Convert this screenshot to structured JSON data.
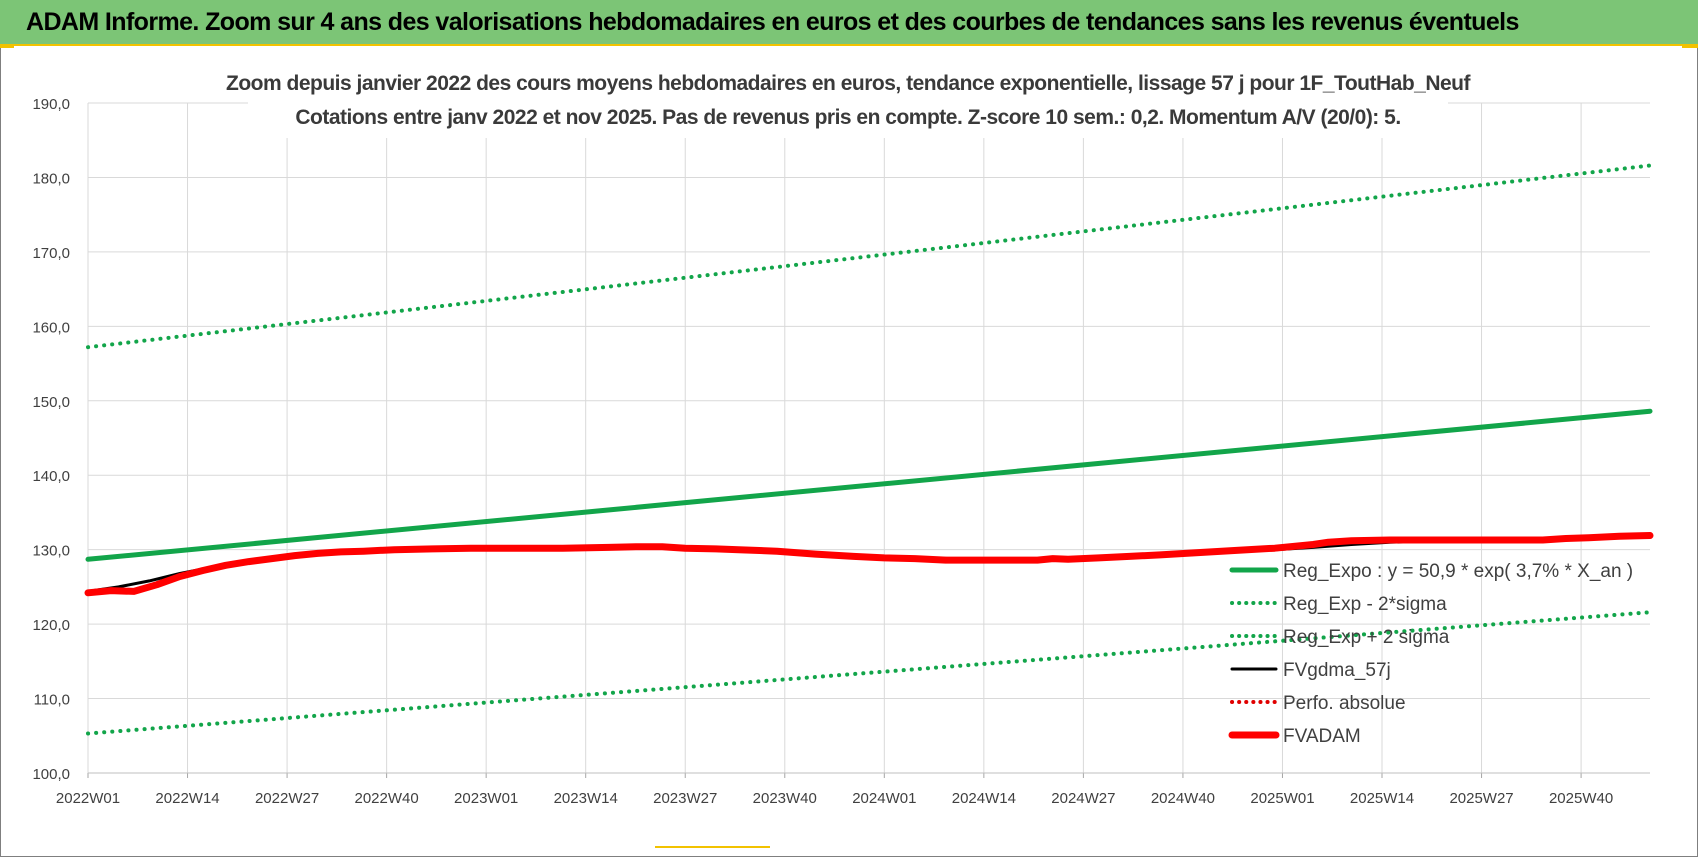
{
  "banner": {
    "title": "ADAM Informe. Zoom sur 4 ans des valorisations hebdomadaires en euros et des courbes de tendances sans les revenus éventuels"
  },
  "colors": {
    "banner_bg": "#7cc576",
    "accent_yellow": "#f2c200",
    "trend_green": "#12a54a",
    "band_green": "#12a54a",
    "fvgdma_black": "#000000",
    "perfo_red": "#e00000",
    "fvadam_red": "#ff0000",
    "grid": "#d9d9d9",
    "axis_text": "#404040"
  },
  "chart_data": {
    "type": "line",
    "title": "Zoom depuis janvier 2022 des cours moyens hebdomadaires en euros, tendance exponentielle, lissage 57 j pour 1F_ToutHab_Neuf",
    "subtitle": "Cotations entre janv 2022 et nov 2025. Pas de revenus pris en compte. Z-score 10 sem.: 0,2. Momentum A/V (20/0): 5.",
    "x_tick_labels": [
      "2022W01",
      "2022W14",
      "2022W27",
      "2022W40",
      "2023W01",
      "2023W14",
      "2023W27",
      "2023W40",
      "2024W01",
      "2024W14",
      "2024W27",
      "2024W40",
      "2025W01",
      "2025W14",
      "2025W27",
      "2025W40"
    ],
    "x_range_weeks": [
      0,
      204
    ],
    "ylim": [
      100,
      190
    ],
    "y_tick_labels": [
      "100,0",
      "110,0",
      "120,0",
      "130,0",
      "140,0",
      "150,0",
      "160,0",
      "170,0",
      "180,0",
      "190,0"
    ],
    "grid": true,
    "legend_position": "bottom-right",
    "series": [
      {
        "name": "Reg_Expo : y = 50,9 * exp( 3,7% *  X_an )",
        "style": "solid-thick",
        "color": "#12a54a",
        "x": [
          0,
          204
        ],
        "y": [
          128.7,
          148.6
        ]
      },
      {
        "name": "Reg_Exp - 2*sigma",
        "style": "dotted",
        "color": "#12a54a",
        "x": [
          0,
          204
        ],
        "y": [
          105.3,
          121.6
        ]
      },
      {
        "name": "Reg_Exp + 2 sigma",
        "style": "dotted",
        "color": "#12a54a",
        "x": [
          0,
          204
        ],
        "y": [
          157.2,
          181.6
        ]
      },
      {
        "name": "FVgdma_57j",
        "style": "solid",
        "color": "#000000",
        "x": [
          0,
          4,
          8,
          12,
          16,
          20,
          25,
          30,
          35,
          40,
          45,
          50,
          56,
          62,
          70,
          78,
          85,
          90,
          95,
          100,
          105,
          110,
          115,
          120,
          125,
          130,
          135,
          140,
          145,
          150,
          155,
          160,
          165,
          170,
          175,
          180,
          185,
          190,
          195,
          200,
          204
        ],
        "y": [
          124.4,
          125.0,
          125.8,
          126.8,
          127.6,
          128.1,
          128.8,
          129.3,
          129.7,
          129.9,
          130.1,
          130.2,
          130.2,
          130.2,
          130.3,
          130.4,
          130.1,
          129.8,
          129.4,
          129.2,
          129.0,
          128.9,
          128.7,
          128.7,
          128.7,
          128.8,
          129.0,
          129.2,
          129.5,
          129.7,
          130.0,
          130.3,
          130.7,
          131.0,
          131.1,
          131.2,
          131.3,
          131.4,
          131.6,
          131.8,
          131.9
        ]
      },
      {
        "name": "Perfo. absolue",
        "style": "dotted",
        "color": "#e00000",
        "x": [],
        "y": []
      },
      {
        "name": "FVADAM",
        "style": "solid-thick",
        "color": "#ff0000",
        "x": [
          0,
          3,
          6,
          9,
          12,
          15,
          18,
          21,
          24,
          27,
          30,
          33,
          36,
          40,
          45,
          50,
          56,
          62,
          68,
          72,
          75,
          78,
          82,
          85,
          90,
          95,
          100,
          104,
          108,
          112,
          116,
          120,
          124,
          126,
          128,
          132,
          136,
          140,
          145,
          150,
          155,
          160,
          162,
          165,
          170,
          175,
          180,
          185,
          190,
          193,
          196,
          200,
          204
        ],
        "y": [
          124.2,
          124.5,
          124.4,
          125.3,
          126.4,
          127.2,
          127.9,
          128.4,
          128.8,
          129.2,
          129.5,
          129.7,
          129.8,
          130.0,
          130.1,
          130.2,
          130.2,
          130.2,
          130.3,
          130.4,
          130.4,
          130.2,
          130.1,
          130.0,
          129.8,
          129.4,
          129.1,
          128.9,
          128.8,
          128.6,
          128.6,
          128.6,
          128.6,
          128.8,
          128.7,
          128.9,
          129.1,
          129.3,
          129.6,
          129.9,
          130.2,
          130.7,
          131.0,
          131.2,
          131.3,
          131.3,
          131.3,
          131.3,
          131.3,
          131.5,
          131.6,
          131.8,
          131.9
        ]
      }
    ]
  }
}
